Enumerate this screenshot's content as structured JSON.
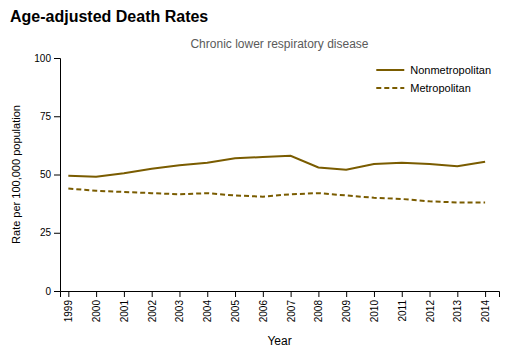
{
  "chart_data": {
    "type": "line",
    "title": "Age-adjusted Death Rates",
    "subtitle": "Chronic lower respiratory disease",
    "xlabel": "Year",
    "ylabel": "Rate per 100,000 population",
    "x": [
      1999,
      2000,
      2001,
      2002,
      2003,
      2004,
      2005,
      2006,
      2007,
      2008,
      2009,
      2010,
      2011,
      2012,
      2013,
      2014
    ],
    "series": [
      {
        "name": "Nonmetropolitan",
        "color": "#7a5c00",
        "line_style": "solid",
        "values": [
          49.5,
          49.0,
          50.5,
          52.5,
          54.0,
          55.0,
          57.0,
          57.5,
          58.0,
          53.0,
          52.0,
          54.5,
          55.0,
          54.5,
          53.5,
          55.5
        ]
      },
      {
        "name": "Metropolitan",
        "color": "#7a5c00",
        "line_style": "dashed",
        "values": [
          44.0,
          43.0,
          42.5,
          42.0,
          41.5,
          42.0,
          41.0,
          40.5,
          41.5,
          42.0,
          41.0,
          40.0,
          39.5,
          38.5,
          38.0,
          38.0
        ]
      }
    ],
    "xlim": [
      1998.7,
      2014.5
    ],
    "xticks": [
      1999,
      2000,
      2001,
      2002,
      2003,
      2004,
      2005,
      2006,
      2007,
      2008,
      2009,
      2010,
      2011,
      2012,
      2013,
      2014
    ],
    "ylim": [
      0,
      100
    ],
    "yticks": [
      0,
      25,
      50,
      75,
      100
    ],
    "legend": "upper right",
    "grid": false
  }
}
